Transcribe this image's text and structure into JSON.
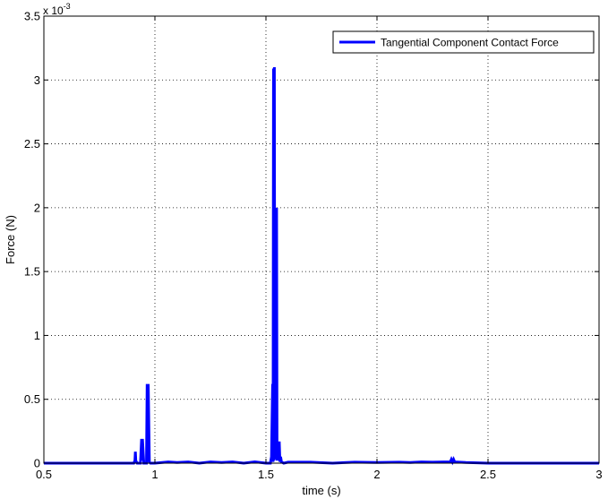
{
  "chart_data": {
    "type": "line",
    "title": "",
    "xlabel": "time (s)",
    "ylabel": "Force (N)",
    "y_exponent_label": "x 10",
    "y_exponent_power": "-3",
    "xlim": [
      0.5,
      3
    ],
    "ylim": [
      0,
      0.0035
    ],
    "grid": true,
    "grid_style": "dotted",
    "legend_position": "top-right",
    "x_ticks": [
      0.5,
      1,
      1.5,
      2,
      2.5,
      3
    ],
    "x_tick_labels": [
      "0.5",
      "1",
      "1.5",
      "2",
      "2.5",
      "3"
    ],
    "y_ticks": [
      0,
      0.0005,
      0.001,
      0.0015,
      0.002,
      0.0025,
      0.003,
      0.0035
    ],
    "y_tick_labels": [
      "0",
      "0.5",
      "1",
      "1.5",
      "2",
      "2.5",
      "3",
      "3.5"
    ],
    "series": [
      {
        "name": "Tangential Component Contact Force",
        "color": "#0000ff",
        "x": [
          0.5,
          0.905,
          0.91,
          0.912,
          0.914,
          0.92,
          0.935,
          0.94,
          0.942,
          0.944,
          0.95,
          0.962,
          0.965,
          0.968,
          0.97,
          0.975,
          0.98,
          1.0,
          1.06,
          1.1,
          1.15,
          1.2,
          1.25,
          1.3,
          1.35,
          1.4,
          1.45,
          1.5,
          1.52,
          1.525,
          1.53,
          1.532,
          1.534,
          1.536,
          1.538,
          1.54,
          1.542,
          1.545,
          1.548,
          1.55,
          1.553,
          1.556,
          1.56,
          1.563,
          1.566,
          1.57,
          1.58,
          1.6,
          1.7,
          1.8,
          1.9,
          2.0,
          2.1,
          2.15,
          2.2,
          2.25,
          2.3,
          2.33,
          2.335,
          2.34,
          2.345,
          2.35,
          2.4,
          2.5,
          2.6,
          2.7,
          2.8,
          2.9,
          3.0
        ],
        "y": [
          0,
          0,
          2e-05,
          9e-05,
          2e-05,
          0,
          0,
          0.00019,
          2e-05,
          0.00019,
          0,
          0,
          0.00062,
          1e-05,
          0.00062,
          1e-05,
          0,
          0,
          1e-05,
          5e-06,
          1e-05,
          0,
          1e-05,
          5e-06,
          1e-05,
          0,
          1e-05,
          0,
          0,
          5e-05,
          0.00062,
          1e-05,
          0.00309,
          2e-05,
          0.0031,
          5e-05,
          0.002,
          3e-05,
          0.002,
          2e-05,
          0.00015,
          2e-05,
          0.00017,
          1e-05,
          5e-05,
          1e-05,
          0,
          8e-06,
          8e-06,
          0,
          8e-06,
          5e-06,
          8e-06,
          5e-06,
          1e-05,
          8e-06,
          1e-05,
          1e-05,
          3e-05,
          1e-05,
          3e-05,
          1e-05,
          5e-06,
          0,
          0,
          0,
          0,
          0,
          0
        ]
      }
    ]
  }
}
